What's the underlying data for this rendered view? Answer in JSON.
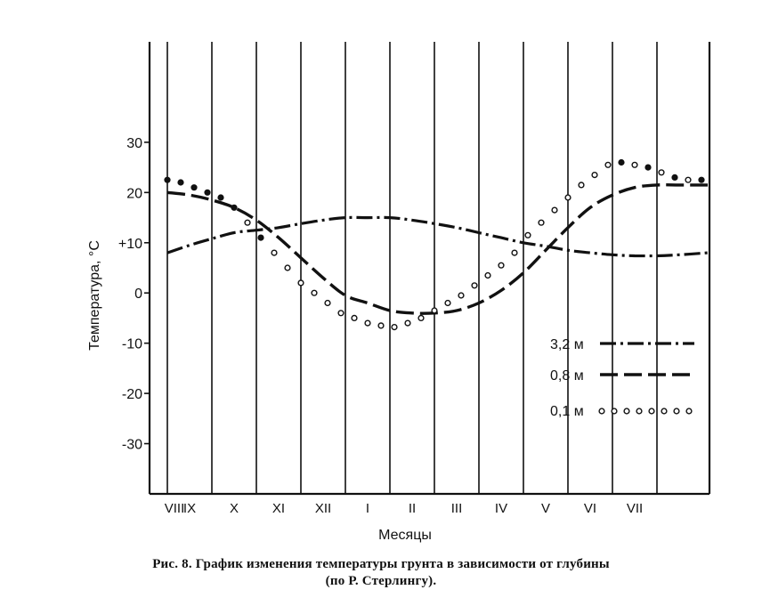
{
  "chart_data": {
    "type": "line",
    "xlabel": "Месяцы",
    "ylabel": "Температура, °С",
    "categories": [
      "VIII",
      "IX",
      "X",
      "XI",
      "XII",
      "I",
      "II",
      "III",
      "IV",
      "V",
      "VI",
      "VII"
    ],
    "ylim": [
      -40,
      50
    ],
    "yticks": [
      {
        "value": 30,
        "label": "30"
      },
      {
        "value": 20,
        "label": "20"
      },
      {
        "value": 10,
        "label": "+10"
      },
      {
        "value": 0,
        "label": "0"
      },
      {
        "value": -10,
        "label": "-10"
      },
      {
        "value": -20,
        "label": "-20"
      },
      {
        "value": -30,
        "label": "-30"
      }
    ],
    "grid": "vertical lines between months",
    "legend_position": "bottom-right",
    "series": [
      {
        "name": "3,2 м",
        "style": "dash-dot",
        "x": [
          0,
          0.5,
          1,
          1.5,
          2,
          2.5,
          3,
          3.5,
          4,
          4.5,
          5,
          5.5,
          6,
          6.5,
          7,
          7.5,
          8,
          8.5,
          9,
          9.5,
          10,
          10.5,
          11,
          11.5,
          12.2
        ],
        "values": [
          8,
          9.5,
          10.8,
          12,
          12.5,
          13,
          13.8,
          14.5,
          15,
          15,
          15,
          14.5,
          13.8,
          13,
          12,
          11,
          10,
          9.3,
          8.5,
          8,
          7.6,
          7.4,
          7.4,
          7.6,
          8
        ]
      },
      {
        "name": "0,8 м",
        "style": "dashed",
        "x": [
          0,
          0.5,
          1,
          1.5,
          2,
          2.5,
          3,
          3.5,
          4,
          4.5,
          5,
          5.5,
          6,
          6.5,
          7,
          7.5,
          8,
          8.5,
          9,
          9.5,
          10,
          10.5,
          11,
          11.5,
          12.2
        ],
        "values": [
          20,
          19.5,
          18.5,
          17,
          14.5,
          11,
          7,
          3,
          -0.5,
          -2,
          -3.5,
          -4,
          -4,
          -3.5,
          -2,
          0.5,
          4,
          8.5,
          13,
          17,
          19.5,
          21,
          21.5,
          21.5,
          21.5
        ]
      },
      {
        "name": "0,1 м",
        "style": "dotted",
        "x": [
          0,
          0.3,
          0.6,
          0.9,
          1.2,
          1.5,
          1.8,
          2.1,
          2.4,
          2.7,
          3.0,
          3.3,
          3.6,
          3.9,
          4.2,
          4.5,
          4.8,
          5.1,
          5.4,
          5.7,
          6.0,
          6.3,
          6.6,
          6.9,
          7.2,
          7.5,
          7.8,
          8.1,
          8.4,
          8.7,
          9.0,
          9.3,
          9.6,
          9.9,
          10.2,
          10.5,
          10.8,
          11.1,
          11.4,
          11.7,
          12.0
        ],
        "values": [
          22.5,
          22,
          21,
          20,
          19,
          17,
          14,
          11,
          8,
          5,
          2,
          0,
          -2,
          -4,
          -5,
          -6,
          -6.5,
          -6.8,
          -6,
          -5,
          -3.5,
          -2,
          -0.5,
          1.5,
          3.5,
          5.5,
          8,
          11.5,
          14,
          16.5,
          19,
          21.5,
          23.5,
          25.5,
          26,
          25.5,
          25,
          24,
          23,
          22.5,
          22.5
        ]
      }
    ]
  },
  "caption": {
    "line1": "Рис. 8. График изменения температуры грунта в зависимости от глубины",
    "line2": "(по Р. Стерлингу)."
  }
}
